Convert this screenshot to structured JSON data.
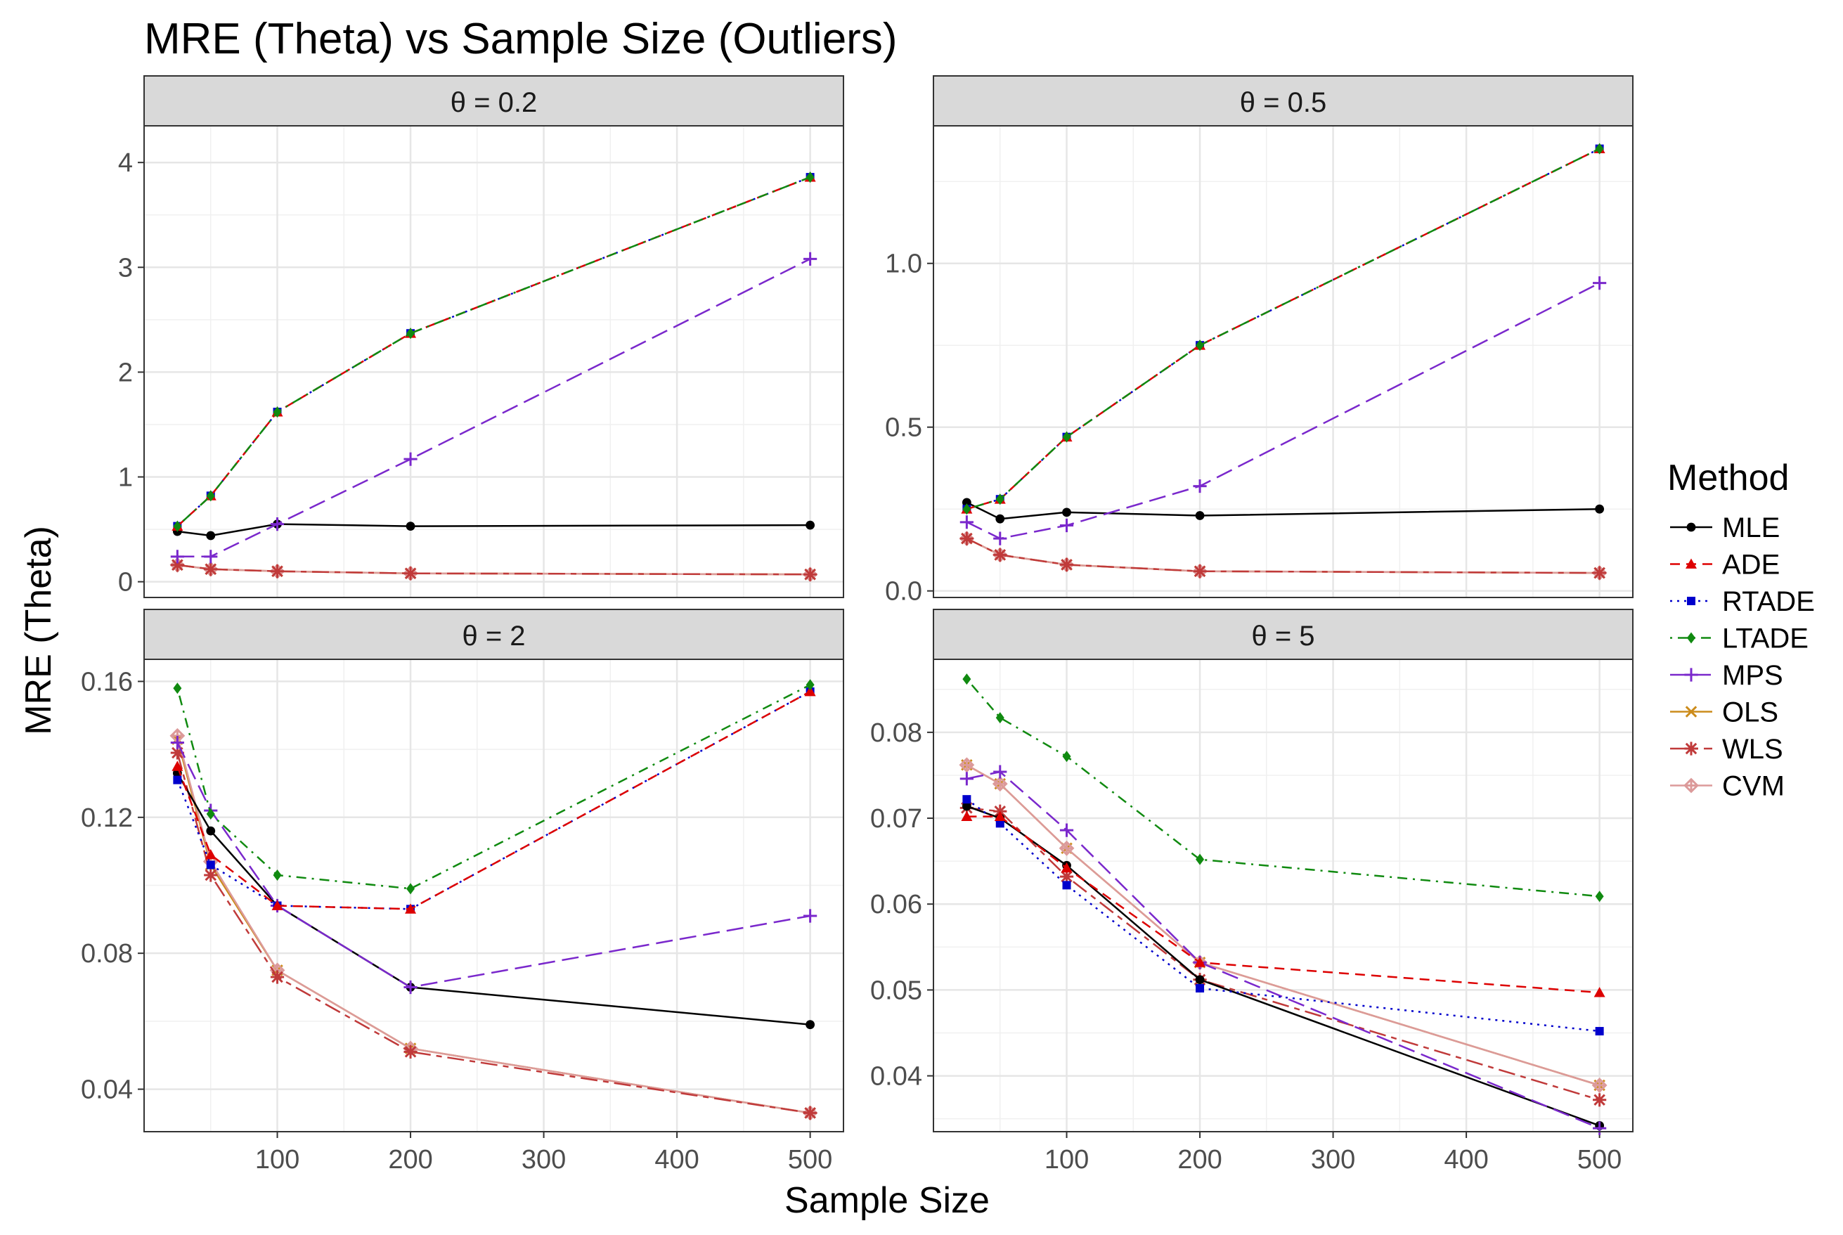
{
  "chart_data": {
    "type": "line",
    "title": "MRE (Theta) vs Sample Size (Outliers)",
    "xlabel": "Sample Size",
    "ylabel": "MRE (Theta)",
    "x": [
      25,
      50,
      100,
      200,
      500
    ],
    "xlim": [
      0,
      525
    ],
    "xticks": [
      100,
      200,
      300,
      400,
      500
    ],
    "xtick_labels": [
      "100",
      "200",
      "300",
      "400",
      "500"
    ],
    "legend": {
      "title": "Method",
      "entries": [
        "MLE",
        "ADE",
        "RTADE",
        "LTADE",
        "MPS",
        "OLS",
        "WLS",
        "CVM"
      ]
    },
    "series_styles": [
      {
        "name": "MLE",
        "color": "#000000",
        "dash": "solid",
        "marker": "circle"
      },
      {
        "name": "ADE",
        "color": "#dd0000",
        "dash": "dashed",
        "marker": "triangle"
      },
      {
        "name": "RTADE",
        "color": "#0000cc",
        "dash": "dotted",
        "marker": "square"
      },
      {
        "name": "LTADE",
        "color": "#108a10",
        "dash": "dotdash",
        "marker": "diamond"
      },
      {
        "name": "MPS",
        "color": "#7a28cc",
        "dash": "longdash",
        "marker": "plus"
      },
      {
        "name": "OLS",
        "color": "#cc8c1c",
        "dash": "solid",
        "marker": "asterisk"
      },
      {
        "name": "WLS",
        "color": "#c03a3a",
        "dash": "twodash",
        "marker": "star"
      },
      {
        "name": "CVM",
        "color": "#dc9a9a",
        "dash": "solid",
        "marker": "diamondplus"
      }
    ],
    "panels": [
      {
        "label": "θ = 0.2",
        "ylim": [
          -0.15,
          4.35
        ],
        "yticks": [
          0,
          1,
          2,
          3,
          4
        ],
        "ytick_labels": [
          "0",
          "1",
          "2",
          "3",
          "4"
        ],
        "series": [
          {
            "name": "MLE",
            "values": [
              0.48,
              0.44,
              0.55,
              0.53,
              0.54
            ]
          },
          {
            "name": "ADE",
            "values": [
              0.53,
              0.82,
              1.62,
              2.37,
              3.86
            ]
          },
          {
            "name": "RTADE",
            "values": [
              0.53,
              0.82,
              1.62,
              2.37,
              3.86
            ]
          },
          {
            "name": "LTADE",
            "values": [
              0.53,
              0.82,
              1.62,
              2.37,
              3.86
            ]
          },
          {
            "name": "MPS",
            "values": [
              0.24,
              0.24,
              0.55,
              1.17,
              3.08
            ]
          },
          {
            "name": "OLS",
            "values": [
              0.16,
              0.12,
              0.1,
              0.08,
              0.07
            ]
          },
          {
            "name": "WLS",
            "values": [
              0.16,
              0.12,
              0.1,
              0.08,
              0.07
            ]
          },
          {
            "name": "CVM",
            "values": [
              0.16,
              0.12,
              0.1,
              0.08,
              0.07
            ]
          }
        ]
      },
      {
        "label": "θ = 0.5",
        "ylim": [
          -0.02,
          1.42
        ],
        "yticks": [
          0,
          0.5,
          1.0
        ],
        "ytick_labels": [
          "0.0",
          "0.5",
          "1.0"
        ],
        "series": [
          {
            "name": "MLE",
            "values": [
              0.27,
              0.22,
              0.24,
              0.23,
              0.25
            ]
          },
          {
            "name": "ADE",
            "values": [
              0.25,
              0.28,
              0.47,
              0.75,
              1.35
            ]
          },
          {
            "name": "RTADE",
            "values": [
              0.25,
              0.28,
              0.47,
              0.75,
              1.35
            ]
          },
          {
            "name": "LTADE",
            "values": [
              0.25,
              0.28,
              0.47,
              0.75,
              1.35
            ]
          },
          {
            "name": "MPS",
            "values": [
              0.21,
              0.16,
              0.2,
              0.32,
              0.94
            ]
          },
          {
            "name": "OLS",
            "values": [
              0.16,
              0.11,
              0.08,
              0.06,
              0.055
            ]
          },
          {
            "name": "WLS",
            "values": [
              0.16,
              0.11,
              0.08,
              0.06,
              0.055
            ]
          },
          {
            "name": "CVM",
            "values": [
              0.16,
              0.11,
              0.08,
              0.06,
              0.055
            ]
          }
        ]
      },
      {
        "label": "θ = 2",
        "ylim": [
          0.0275,
          0.1665
        ],
        "yticks": [
          0.04,
          0.08,
          0.12,
          0.16
        ],
        "ytick_labels": [
          "0.04",
          "0.08",
          "0.12",
          "0.16"
        ],
        "series": [
          {
            "name": "MLE",
            "values": [
              0.133,
              0.116,
              0.094,
              0.07,
              0.059
            ]
          },
          {
            "name": "ADE",
            "values": [
              0.135,
              0.109,
              0.094,
              0.093,
              0.157
            ]
          },
          {
            "name": "RTADE",
            "values": [
              0.131,
              0.106,
              0.094,
              0.093,
              0.157
            ]
          },
          {
            "name": "LTADE",
            "values": [
              0.158,
              0.121,
              0.103,
              0.099,
              0.159
            ]
          },
          {
            "name": "MPS",
            "values": [
              0.142,
              0.122,
              0.094,
              0.07,
              0.091
            ]
          },
          {
            "name": "OLS",
            "values": [
              0.143,
              0.106,
              0.075,
              0.052,
              0.033
            ]
          },
          {
            "name": "WLS",
            "values": [
              0.139,
              0.103,
              0.073,
              0.051,
              0.033
            ]
          },
          {
            "name": "CVM",
            "values": [
              0.144,
              0.107,
              0.075,
              0.052,
              0.033
            ]
          }
        ]
      },
      {
        "label": "θ = 5",
        "ylim": [
          0.0335,
          0.0885
        ],
        "yticks": [
          0.04,
          0.05,
          0.06,
          0.07,
          0.08
        ],
        "ytick_labels": [
          "0.04",
          "0.05",
          "0.06",
          "0.07",
          "0.08"
        ],
        "series": [
          {
            "name": "MLE",
            "values": [
              0.0714,
              0.07,
              0.0645,
              0.0512,
              0.0342
            ]
          },
          {
            "name": "ADE",
            "values": [
              0.0702,
              0.0702,
              0.0642,
              0.0532,
              0.0497
            ]
          },
          {
            "name": "RTADE",
            "values": [
              0.0722,
              0.0694,
              0.0622,
              0.0502,
              0.0452
            ]
          },
          {
            "name": "LTADE",
            "values": [
              0.0862,
              0.0817,
              0.0772,
              0.0652,
              0.0609
            ]
          },
          {
            "name": "MPS",
            "values": [
              0.0746,
              0.0754,
              0.0686,
              0.0532,
              0.0339
            ]
          },
          {
            "name": "OLS",
            "values": [
              0.0762,
              0.074,
              0.0665,
              0.0532,
              0.0389
            ]
          },
          {
            "name": "WLS",
            "values": [
              0.0712,
              0.0708,
              0.0632,
              0.0512,
              0.0372
            ]
          },
          {
            "name": "CVM",
            "values": [
              0.0762,
              0.074,
              0.0665,
              0.0532,
              0.0389
            ]
          }
        ]
      }
    ]
  }
}
